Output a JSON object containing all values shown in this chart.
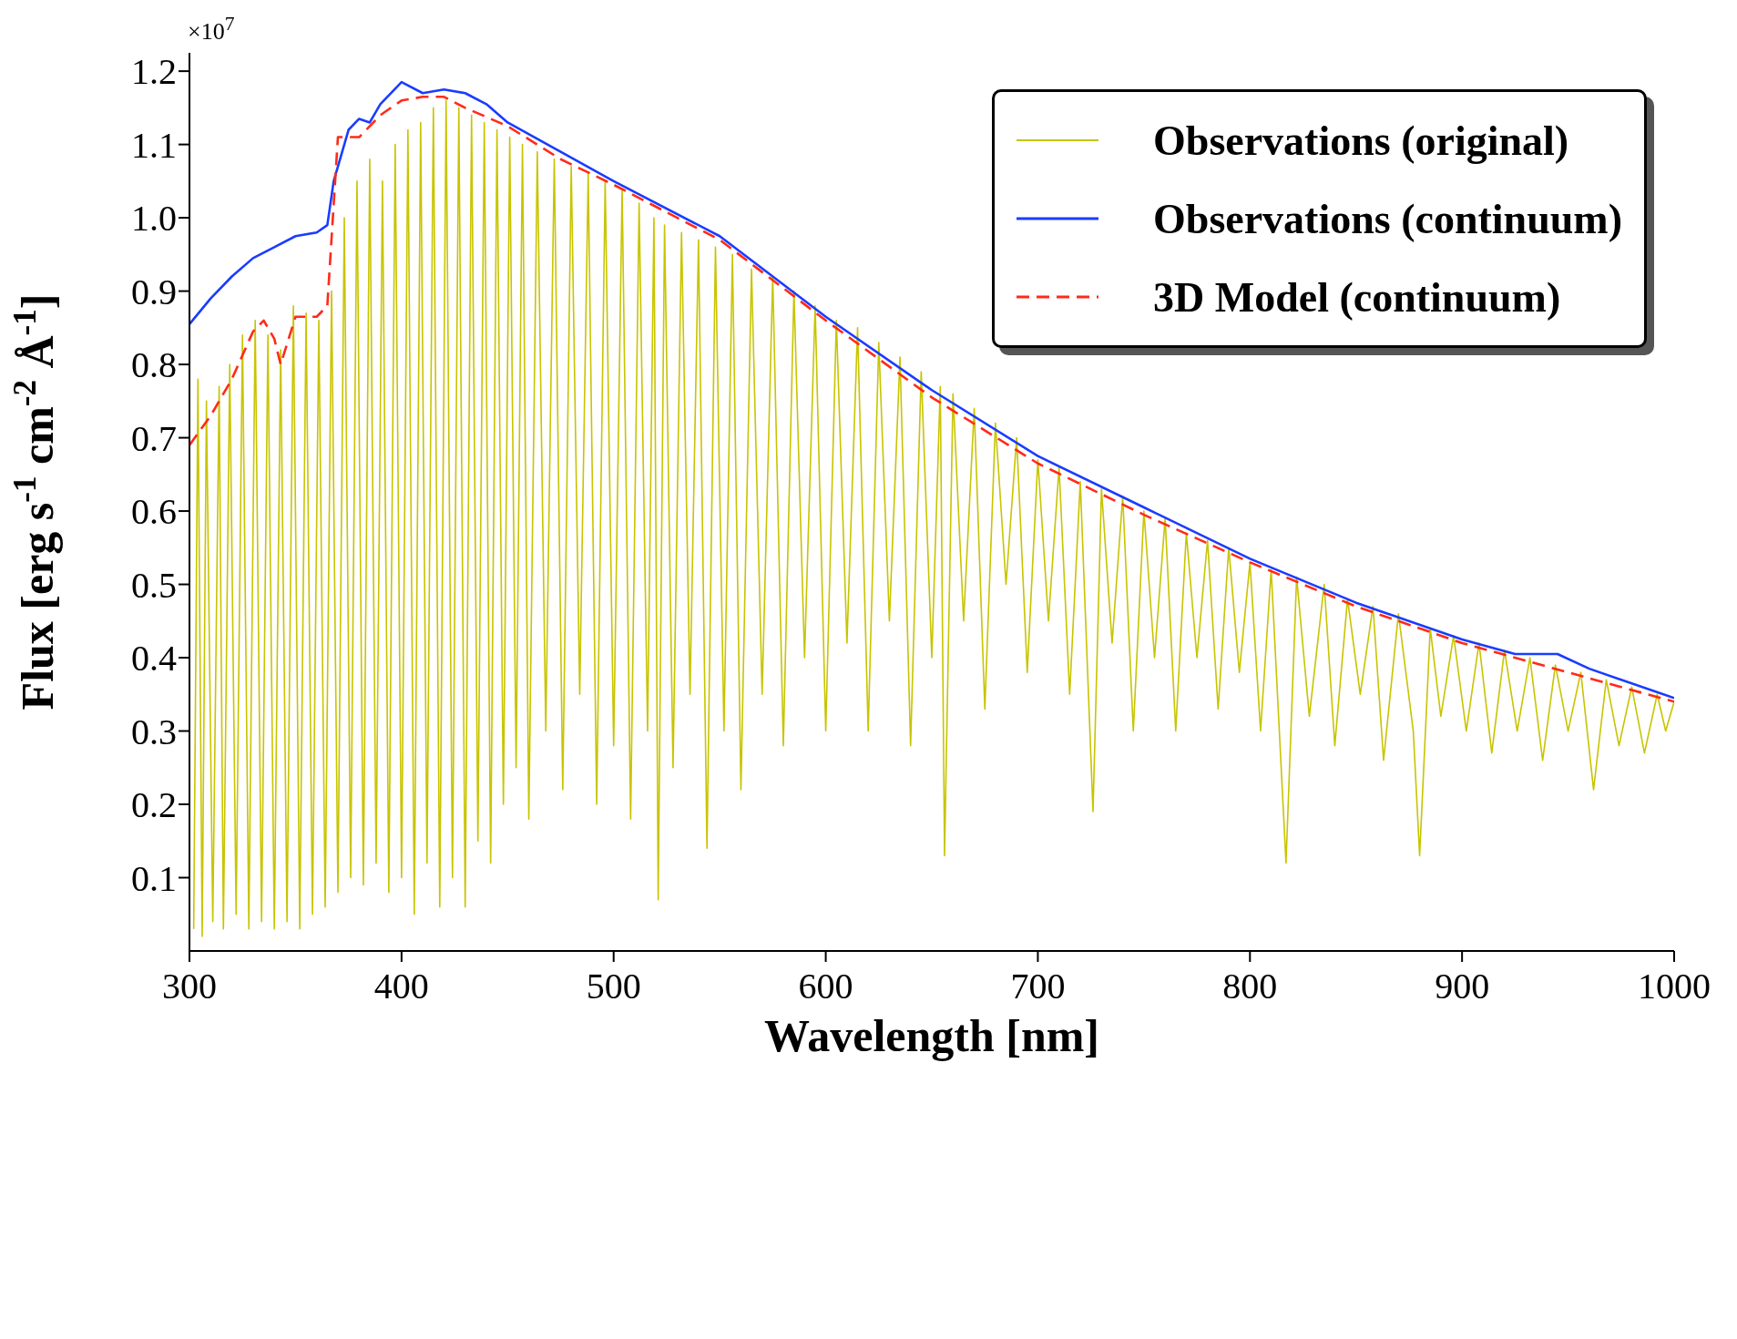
{
  "chart_data": {
    "type": "line",
    "xlabel": "Wavelength [nm]",
    "ylabel": "Flux [erg s$^{-1}$ cm$^{-2}$ Å$^{-1}$]",
    "annotations": [
      "×10$^{7}$"
    ],
    "xlim": [
      300,
      1000
    ],
    "xticks": [
      300,
      400,
      500,
      600,
      700,
      800,
      900,
      1000
    ],
    "ylim": [
      0,
      1.225
    ],
    "yticks": [
      0.1,
      0.2,
      0.3,
      0.4,
      0.5,
      0.6,
      0.7,
      0.8,
      0.9,
      {
        "value": 1,
        "label": "1.0"
      },
      1.1,
      1.2
    ],
    "legend": "top right",
    "series": [
      {
        "name": "Observations (original)",
        "color": "#c8c400",
        "line_style": "solid",
        "x": [
          302,
          304,
          306,
          308,
          311,
          314,
          316,
          319,
          322,
          325,
          328,
          331,
          334,
          337,
          340,
          343,
          346,
          349,
          352,
          355,
          358,
          361,
          364,
          367,
          370,
          373,
          376,
          379,
          382,
          385,
          388,
          391,
          394,
          397,
          400,
          403,
          406,
          409,
          412,
          415,
          418,
          421,
          424,
          427,
          430,
          433,
          436,
          439,
          442,
          445,
          448,
          451,
          454,
          457,
          460,
          464,
          468,
          472,
          476,
          480,
          484,
          488,
          492,
          496,
          500,
          504,
          508,
          512,
          516,
          519,
          521,
          524,
          528,
          532,
          536,
          540,
          544,
          548,
          552,
          556,
          560,
          565,
          570,
          575,
          580,
          585,
          590,
          595,
          600,
          605,
          610,
          615,
          620,
          625,
          630,
          635,
          640,
          645,
          650,
          654,
          656,
          660,
          665,
          670,
          675,
          680,
          685,
          690,
          695,
          700,
          705,
          710,
          715,
          720,
          726,
          730,
          735,
          740,
          745,
          750,
          755,
          760,
          765,
          770,
          775,
          780,
          785,
          790,
          795,
          800,
          805,
          810,
          817,
          822,
          828,
          835,
          840,
          846,
          852,
          858,
          863,
          870,
          877,
          880,
          885,
          890,
          896,
          902,
          908,
          914,
          920,
          926,
          932,
          938,
          944,
          950,
          956,
          962,
          968,
          974,
          980,
          986,
          992,
          996,
          1000
        ],
        "values": [
          0.03,
          0.78,
          0.02,
          0.75,
          0.04,
          0.77,
          0.03,
          0.8,
          0.05,
          0.84,
          0.03,
          0.86,
          0.04,
          0.84,
          0.03,
          0.82,
          0.04,
          0.88,
          0.03,
          0.87,
          0.05,
          0.86,
          0.06,
          0.9,
          0.08,
          1.0,
          0.1,
          1.05,
          0.09,
          1.08,
          0.12,
          1.05,
          0.08,
          1.1,
          0.1,
          1.12,
          0.05,
          1.13,
          0.12,
          1.15,
          0.06,
          1.16,
          0.1,
          1.15,
          0.06,
          1.14,
          0.15,
          1.13,
          0.12,
          1.12,
          0.2,
          1.11,
          0.25,
          1.1,
          0.18,
          1.09,
          0.3,
          1.08,
          0.22,
          1.07,
          0.35,
          1.06,
          0.2,
          1.05,
          0.28,
          1.04,
          0.18,
          1.02,
          0.3,
          1.0,
          0.07,
          0.99,
          0.25,
          0.98,
          0.35,
          0.97,
          0.14,
          0.96,
          0.3,
          0.95,
          0.22,
          0.93,
          0.35,
          0.92,
          0.28,
          0.9,
          0.4,
          0.88,
          0.3,
          0.86,
          0.42,
          0.85,
          0.3,
          0.83,
          0.45,
          0.81,
          0.28,
          0.79,
          0.4,
          0.77,
          0.13,
          0.76,
          0.45,
          0.74,
          0.33,
          0.72,
          0.5,
          0.7,
          0.38,
          0.67,
          0.45,
          0.66,
          0.35,
          0.64,
          0.19,
          0.63,
          0.42,
          0.62,
          0.3,
          0.6,
          0.4,
          0.59,
          0.3,
          0.57,
          0.4,
          0.56,
          0.33,
          0.55,
          0.38,
          0.53,
          0.3,
          0.52,
          0.12,
          0.51,
          0.32,
          0.5,
          0.28,
          0.48,
          0.35,
          0.47,
          0.26,
          0.46,
          0.3,
          0.13,
          0.44,
          0.32,
          0.43,
          0.3,
          0.42,
          0.27,
          0.41,
          0.3,
          0.4,
          0.26,
          0.39,
          0.3,
          0.38,
          0.22,
          0.37,
          0.28,
          0.36,
          0.27,
          0.35,
          0.3,
          0.34
        ]
      },
      {
        "name": "Observations (continuum)",
        "color": "#1a3cff",
        "line_style": "solid",
        "x": [
          300,
          310,
          320,
          330,
          340,
          350,
          360,
          365,
          368,
          375,
          380,
          385,
          390,
          400,
          410,
          420,
          430,
          440,
          450,
          475,
          500,
          550,
          600,
          650,
          700,
          750,
          800,
          850,
          900,
          925,
          945,
          960,
          1000
        ],
        "values": [
          0.855,
          0.89,
          0.92,
          0.945,
          0.96,
          0.975,
          0.98,
          0.99,
          1.05,
          1.12,
          1.135,
          1.13,
          1.155,
          1.185,
          1.17,
          1.175,
          1.17,
          1.155,
          1.13,
          1.09,
          1.05,
          0.975,
          0.865,
          0.765,
          0.675,
          0.605,
          0.535,
          0.475,
          0.425,
          0.405,
          0.405,
          0.385,
          0.345
        ]
      },
      {
        "name": "3D Model (continuum)",
        "color": "#ff2a1a",
        "line_style": "dashed",
        "x": [
          300,
          310,
          320,
          330,
          335,
          340,
          343,
          350,
          360,
          365,
          370,
          380,
          390,
          400,
          410,
          420,
          430,
          450,
          475,
          500,
          550,
          600,
          650,
          700,
          750,
          800,
          850,
          900,
          950,
          1000
        ],
        "values": [
          0.69,
          0.73,
          0.78,
          0.845,
          0.86,
          0.835,
          0.8,
          0.865,
          0.865,
          0.88,
          1.11,
          1.11,
          1.14,
          1.16,
          1.165,
          1.165,
          1.15,
          1.125,
          1.08,
          1.045,
          0.97,
          0.86,
          0.755,
          0.665,
          0.595,
          0.53,
          0.47,
          0.42,
          0.38,
          0.34
        ]
      }
    ]
  }
}
